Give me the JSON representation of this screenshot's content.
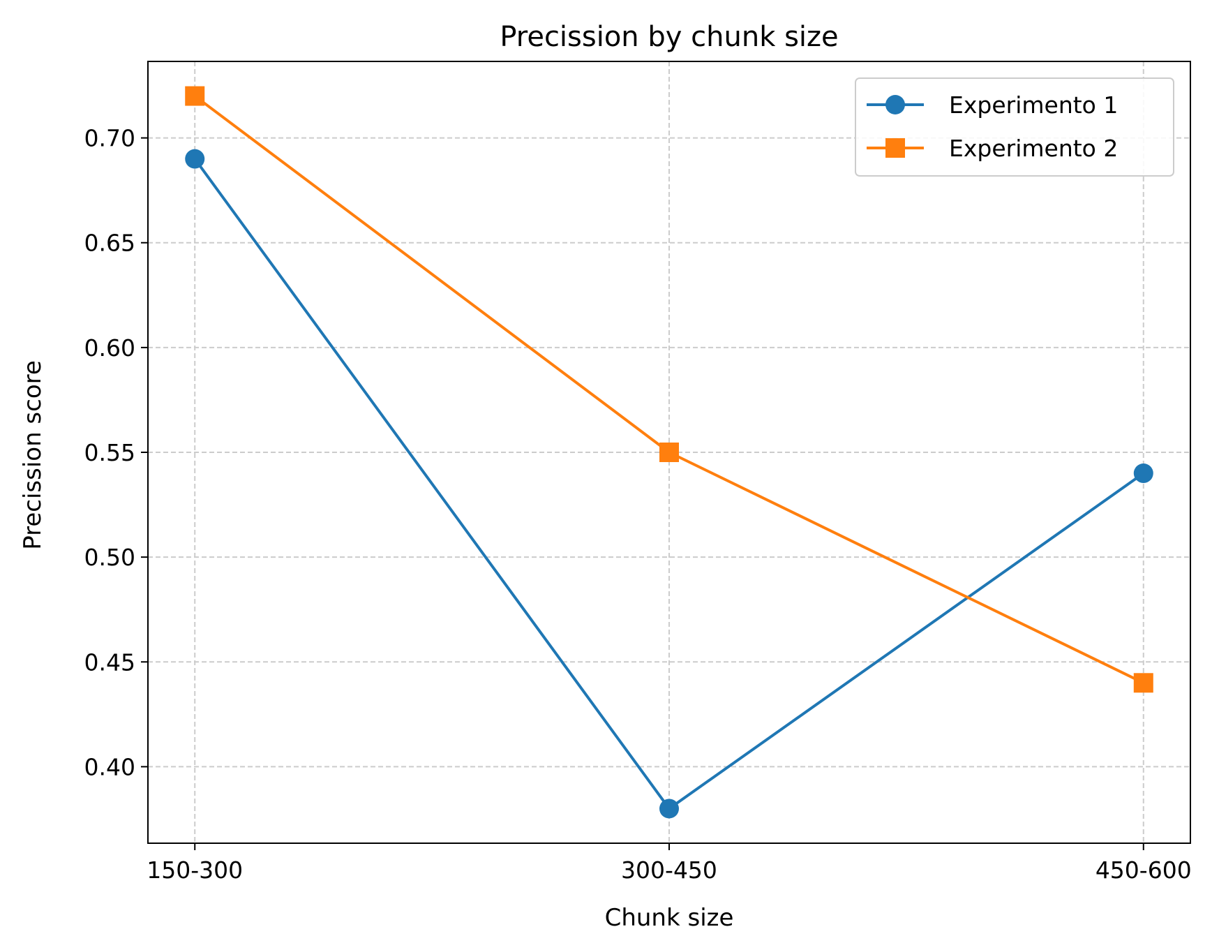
{
  "chart_data": {
    "type": "line",
    "title": "Precission by chunk size",
    "xlabel": "Chunk size",
    "ylabel": "Precission score",
    "categories": [
      "150-300",
      "300-450",
      "450-600"
    ],
    "series": [
      {
        "name": "Experimento 1",
        "values": [
          0.69,
          0.38,
          0.54
        ],
        "color": "#1f77b4",
        "marker": "circle"
      },
      {
        "name": "Experimento 2",
        "values": [
          0.72,
          0.55,
          0.44
        ],
        "color": "#ff7f0e",
        "marker": "square"
      }
    ],
    "yticks": [
      "0.40",
      "0.45",
      "0.50",
      "0.55",
      "0.60",
      "0.65",
      "0.70"
    ],
    "ylim": [
      0.3635,
      0.7365
    ],
    "grid": true,
    "legend_position": "top-right"
  }
}
